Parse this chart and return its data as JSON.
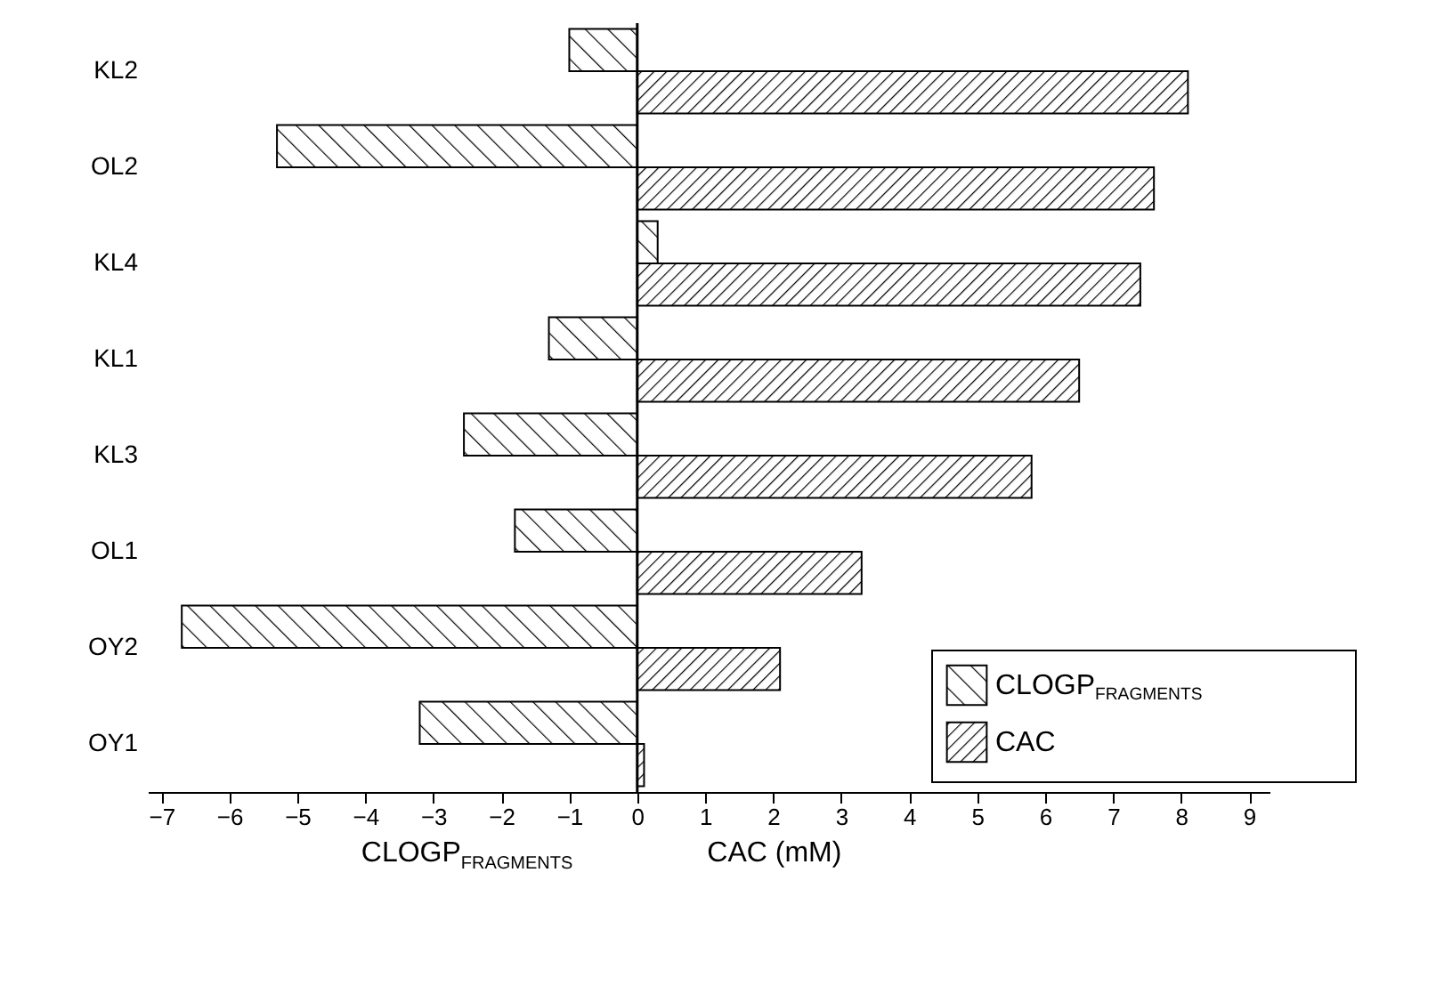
{
  "chart_data": {
    "type": "bar",
    "orientation": "horizontal",
    "xlabel": "CLOGP$_{FRAGMENTS}$",
    "annotations": [
      "CAC (mM)"
    ],
    "categories": [
      "KL2",
      "OL2",
      "KL4",
      "KL1",
      "KL3",
      "OL1",
      "OY2",
      "OY1"
    ],
    "series": [
      {
        "name": "CLOGP$_{FRAGMENTS}$",
        "color": "#000000",
        "values": [
          -1.0,
          -5.3,
          0.3,
          -1.3,
          -2.55,
          -1.8,
          -6.7,
          -3.2
        ]
      },
      {
        "name": "CAC",
        "color": "#000000",
        "values": [
          8.1,
          7.6,
          7.4,
          6.5,
          5.8,
          3.3,
          2.1,
          0.1
        ]
      }
    ],
    "xlim": [
      -7.2,
      9.3
    ],
    "xticks": [
      -7,
      -6,
      -5,
      -4,
      -3,
      -2,
      -1,
      0,
      1,
      2,
      3,
      4,
      5,
      6,
      7,
      8,
      9
    ],
    "ref_lines": [
      {
        "axis": "x",
        "value": 0,
        "color": "#000000"
      }
    ],
    "grid": false,
    "legend": "bottom right"
  }
}
